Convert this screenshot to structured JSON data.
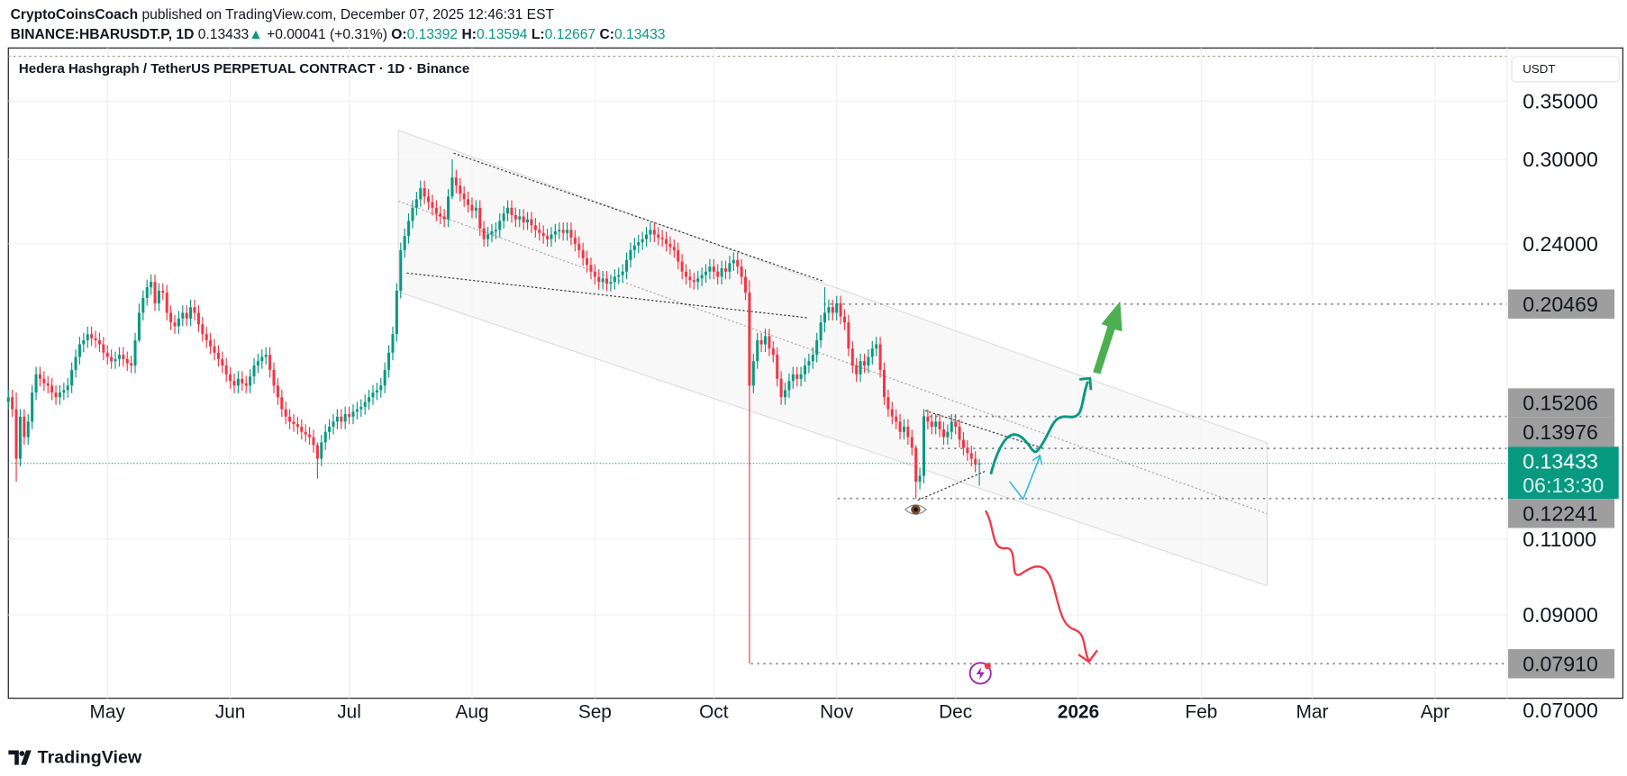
{
  "header": {
    "author": "CryptoCoinsCoach",
    "published": " published on TradingView.com, December 07, 2025 12:46:31 EST",
    "symbol": "BINANCE:HBARUSDT.P, 1D",
    "last": "0.13433",
    "change": "+0.00041 (+0.31%)",
    "o_label": "O:",
    "o": "0.13392",
    "h_label": "H:",
    "h": "0.13594",
    "l_label": "L:",
    "l": "0.12667",
    "c_label": "C:",
    "c": "0.13433"
  },
  "legend": "Hedera Hashgraph / TetherUS PERPETUAL CONTRACT · 1D · Binance",
  "currency": "USDT",
  "brand": "TradingView",
  "colors": {
    "up": "#089981",
    "down": "#F23645",
    "label_bg": "#9e9e9e",
    "projection_up": "#089981",
    "projection_down": "#F23645",
    "arrow": "#4caf50"
  },
  "chart_data": {
    "type": "candlestick",
    "scale": "log",
    "grid": true,
    "start_date": "2025-04-06",
    "price_ticks": [
      {
        "value": 0.35,
        "label": "0.35000"
      },
      {
        "value": 0.3,
        "label": "0.30000"
      },
      {
        "value": 0.24,
        "label": "0.24000"
      },
      {
        "value": 0.11,
        "label": "0.11000"
      },
      {
        "value": 0.09,
        "label": "0.09000"
      },
      {
        "value": 0.07,
        "label": "0.07000"
      }
    ],
    "time_ticks": [
      {
        "date": "2025-05-01",
        "label": "May"
      },
      {
        "date": "2025-06-01",
        "label": "Jun"
      },
      {
        "date": "2025-07-01",
        "label": "Jul"
      },
      {
        "date": "2025-08-01",
        "label": "Aug"
      },
      {
        "date": "2025-09-01",
        "label": "Sep"
      },
      {
        "date": "2025-10-01",
        "label": "Oct"
      },
      {
        "date": "2025-11-01",
        "label": "Nov"
      },
      {
        "date": "2025-12-01",
        "label": "Dec"
      },
      {
        "date": "2026-01-01",
        "label": "2026",
        "bold": true
      },
      {
        "date": "2026-02-01",
        "label": "Feb"
      },
      {
        "date": "2026-03-01",
        "label": "Mar"
      },
      {
        "date": "2026-04-01",
        "label": "Apr"
      }
    ],
    "closes": [
      0.16,
      0.155,
      0.136,
      0.152,
      0.144,
      0.15,
      0.162,
      0.17,
      0.168,
      0.166,
      0.165,
      0.162,
      0.16,
      0.162,
      0.163,
      0.165,
      0.172,
      0.178,
      0.184,
      0.186,
      0.189,
      0.187,
      0.186,
      0.184,
      0.18,
      0.178,
      0.176,
      0.177,
      0.179,
      0.177,
      0.175,
      0.174,
      0.186,
      0.2,
      0.208,
      0.214,
      0.217,
      0.205,
      0.212,
      0.211,
      0.2,
      0.195,
      0.193,
      0.197,
      0.2,
      0.197,
      0.203,
      0.2,
      0.194,
      0.189,
      0.186,
      0.183,
      0.18,
      0.177,
      0.174,
      0.17,
      0.167,
      0.165,
      0.168,
      0.166,
      0.165,
      0.169,
      0.174,
      0.176,
      0.178,
      0.179,
      0.172,
      0.165,
      0.16,
      0.155,
      0.152,
      0.15,
      0.149,
      0.148,
      0.146,
      0.145,
      0.144,
      0.141,
      0.136,
      0.142,
      0.146,
      0.148,
      0.15,
      0.152,
      0.15,
      0.153,
      0.152,
      0.154,
      0.155,
      0.156,
      0.158,
      0.16,
      0.162,
      0.163,
      0.165,
      0.172,
      0.18,
      0.189,
      0.212,
      0.236,
      0.245,
      0.255,
      0.264,
      0.27,
      0.278,
      0.272,
      0.268,
      0.264,
      0.26,
      0.258,
      0.256,
      0.272,
      0.286,
      0.28,
      0.274,
      0.27,
      0.266,
      0.262,
      0.264,
      0.25,
      0.243,
      0.246,
      0.248,
      0.249,
      0.255,
      0.26,
      0.264,
      0.259,
      0.256,
      0.258,
      0.254,
      0.256,
      0.252,
      0.249,
      0.247,
      0.245,
      0.243,
      0.246,
      0.248,
      0.249,
      0.247,
      0.249,
      0.244,
      0.24,
      0.236,
      0.231,
      0.227,
      0.223,
      0.22,
      0.217,
      0.219,
      0.216,
      0.217,
      0.22,
      0.221,
      0.223,
      0.23,
      0.236,
      0.239,
      0.241,
      0.243,
      0.246,
      0.249,
      0.246,
      0.244,
      0.243,
      0.24,
      0.238,
      0.236,
      0.229,
      0.223,
      0.22,
      0.218,
      0.217,
      0.219,
      0.221,
      0.223,
      0.226,
      0.223,
      0.22,
      0.225,
      0.223,
      0.228,
      0.23,
      0.226,
      0.22,
      0.211,
      0.165,
      0.176,
      0.186,
      0.184,
      0.188,
      0.182,
      0.179,
      0.168,
      0.16,
      0.163,
      0.167,
      0.17,
      0.168,
      0.17,
      0.174,
      0.176,
      0.179,
      0.186,
      0.195,
      0.2,
      0.203,
      0.2,
      0.205,
      0.198,
      0.195,
      0.182,
      0.174,
      0.17,
      0.176,
      0.174,
      0.178,
      0.182,
      0.184,
      0.172,
      0.16,
      0.155,
      0.152,
      0.15,
      0.146,
      0.148,
      0.144,
      0.14,
      0.128,
      0.13,
      0.152,
      0.15,
      0.148,
      0.15,
      0.147,
      0.144,
      0.146,
      0.15,
      0.148,
      0.143,
      0.14,
      0.138,
      0.136,
      0.1339,
      0.1343
    ],
    "first_open": 0.158,
    "wick_overrides": {
      "2": [
        0.162,
        0.128
      ],
      "33": [
        0.205,
        0.185
      ],
      "78": [
        0.142,
        0.129
      ],
      "112": [
        0.3,
        0.27
      ],
      "187": [
        0.218,
        0.0791
      ],
      "206": [
        0.214,
        0.19
      ],
      "229": [
        0.141,
        0.1224
      ],
      "245": [
        0.13594,
        0.12667
      ]
    },
    "levels": [
      {
        "value": 0.20469,
        "label": "0.20469"
      },
      {
        "value": 0.15206,
        "label": "0.15206"
      },
      {
        "value": 0.13976,
        "label": "0.13976"
      },
      {
        "value": 0.12241,
        "label": "0.12241"
      },
      {
        "value": 0.0791,
        "label": "0.07910"
      }
    ],
    "current": {
      "value": 0.13433,
      "label": "0.13433",
      "countdown": "06:13:30"
    }
  }
}
